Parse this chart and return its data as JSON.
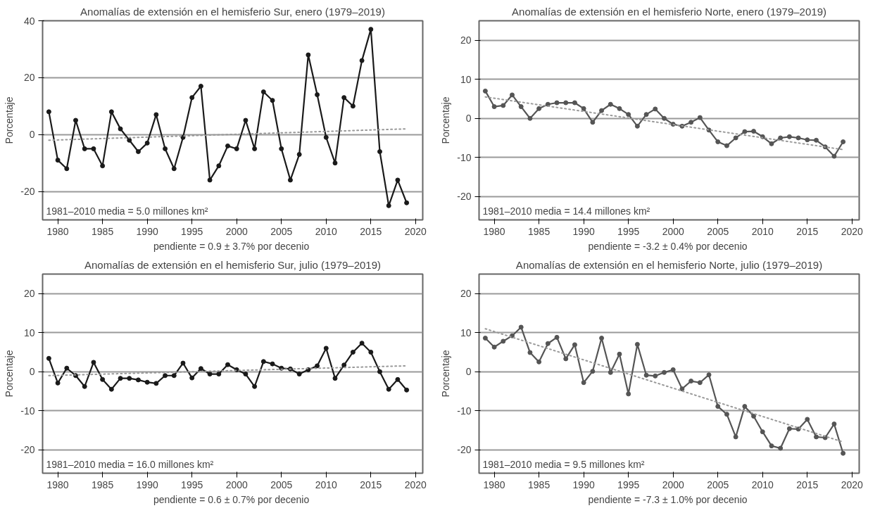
{
  "chart_data": [
    {
      "type": "line",
      "title": "Anomalías de extensión en el hemisferio Sur, enero (1979–2019)",
      "xlabel": "pendiente  = 0.9 ± 3.7% por decenio",
      "ylabel": "Porcentaje",
      "annotations": [
        "1981–2010 media = 5.0 millones km²"
      ],
      "xlim": [
        1978.3,
        2020.8
      ],
      "xticks": [
        1980,
        1985,
        1990,
        1995,
        2000,
        2005,
        2010,
        2015,
        2020
      ],
      "ylim": [
        -30,
        40
      ],
      "yticks": [
        -20,
        0,
        20,
        40
      ],
      "grid": "y",
      "marker": "circle",
      "line_style": "solid",
      "series": [
        {
          "color": "#1a1a1a",
          "x": [
            1979,
            1980,
            1981,
            1982,
            1983,
            1984,
            1985,
            1986,
            1987,
            1988,
            1989,
            1990,
            1991,
            1992,
            1993,
            1994,
            1995,
            1996,
            1997,
            1998,
            1999,
            2000,
            2001,
            2002,
            2003,
            2004,
            2005,
            2006,
            2007,
            2008,
            2009,
            2010,
            2011,
            2012,
            2013,
            2014,
            2015,
            2016,
            2017,
            2018,
            2019
          ],
          "values": [
            8,
            -9,
            -12,
            5,
            -5,
            -5,
            -11,
            8,
            2,
            -2,
            -6,
            -3,
            7,
            -5,
            -12,
            -1,
            13,
            17,
            -16,
            -11,
            -4,
            -5,
            5,
            -5,
            15,
            12,
            -5,
            -16,
            -7,
            28,
            14,
            -1,
            -10,
            13,
            10,
            26,
            37,
            -6,
            -25,
            -16,
            -24
          ]
        },
        {
          "color": "#999999",
          "marker": "none",
          "line_style": "dotted",
          "x": [
            1979,
            2019
          ],
          "values": [
            -2,
            2
          ]
        }
      ]
    },
    {
      "type": "line",
      "title": "Anomalías de extensión en el hemisferio Norte, enero (1979–2019)",
      "xlabel": "pendiente  = -3.2 ± 0.4% por decenio",
      "ylabel": "Porcentaje",
      "annotations": [
        "1981–2010 media = 14.4 millones km²"
      ],
      "xlim": [
        1978.3,
        2020.8
      ],
      "xticks": [
        1980,
        1985,
        1990,
        1995,
        2000,
        2005,
        2010,
        2015,
        2020
      ],
      "ylim": [
        -26,
        25
      ],
      "yticks": [
        -20,
        -10,
        0,
        10,
        20
      ],
      "grid": "y",
      "marker": "circle",
      "line_style": "solid",
      "series": [
        {
          "color": "#555555",
          "x": [
            1979,
            1980,
            1981,
            1982,
            1983,
            1984,
            1985,
            1986,
            1987,
            1988,
            1989,
            1990,
            1991,
            1992,
            1993,
            1994,
            1995,
            1996,
            1997,
            1998,
            1999,
            2000,
            2001,
            2002,
            2003,
            2004,
            2005,
            2006,
            2007,
            2008,
            2009,
            2010,
            2011,
            2012,
            2013,
            2014,
            2015,
            2016,
            2017,
            2018,
            2019
          ],
          "values": [
            7,
            3,
            3.3,
            6,
            3,
            0,
            2.5,
            3.6,
            4,
            4,
            4,
            2.5,
            -1,
            2,
            3.6,
            2.5,
            1,
            -2,
            1,
            2.4,
            0,
            -1.5,
            -2,
            -1,
            0.2,
            -3,
            -6,
            -7,
            -5,
            -3.4,
            -3.3,
            -4.7,
            -6.5,
            -5,
            -4.7,
            -5,
            -5.5,
            -5.6,
            -7.3,
            -9.7,
            -6
          ]
        },
        {
          "color": "#999999",
          "marker": "none",
          "line_style": "dotted",
          "x": [
            1979,
            2019
          ],
          "values": [
            5.5,
            -8
          ]
        }
      ]
    },
    {
      "type": "line",
      "title": "Anomalías de extensión en el hemisferio Sur, julio (1979–2019)",
      "xlabel": "pendiente  = 0.6 ± 0.7% por decenio",
      "ylabel": "Porcentaje",
      "annotations": [
        "1981–2010 media = 16.0 millones km²"
      ],
      "xlim": [
        1978.3,
        2020.8
      ],
      "xticks": [
        1980,
        1985,
        1990,
        1995,
        2000,
        2005,
        2010,
        2015,
        2020
      ],
      "ylim": [
        -26,
        25
      ],
      "yticks": [
        -20,
        -10,
        0,
        10,
        20
      ],
      "grid": "y",
      "marker": "circle",
      "line_style": "solid",
      "series": [
        {
          "color": "#1a1a1a",
          "x": [
            1979,
            1980,
            1981,
            1982,
            1983,
            1984,
            1985,
            1986,
            1987,
            1988,
            1989,
            1990,
            1991,
            1992,
            1993,
            1994,
            1995,
            1996,
            1997,
            1998,
            1999,
            2000,
            2001,
            2002,
            2003,
            2004,
            2005,
            2006,
            2007,
            2008,
            2009,
            2010,
            2011,
            2012,
            2013,
            2014,
            2015,
            2016,
            2017,
            2018,
            2019
          ],
          "values": [
            3.4,
            -2.9,
            0.9,
            -1,
            -3.8,
            2.4,
            -2,
            -4.5,
            -1.7,
            -1.7,
            -2.1,
            -2.7,
            -3,
            -1,
            -1,
            2.2,
            -1.6,
            0.8,
            -0.6,
            -0.6,
            1.8,
            0.5,
            -0.6,
            -3.8,
            2.6,
            2,
            0.9,
            0.7,
            -0.6,
            0.5,
            1.5,
            6,
            -1.7,
            1.7,
            5,
            7.3,
            5,
            0,
            -4.5,
            -2,
            -4.7
          ]
        },
        {
          "color": "#999999",
          "marker": "none",
          "line_style": "dotted",
          "x": [
            1979,
            2019
          ],
          "values": [
            -1,
            1.5
          ]
        }
      ]
    },
    {
      "type": "line",
      "title": "Anomalías de extensión en el hemisferio Norte, julio (1979–2019)",
      "xlabel": "pendiente  = -7.3 ± 1.0% por decenio",
      "ylabel": "Porcentaje",
      "annotations": [
        "1981–2010 media = 9.5 millones km²"
      ],
      "xlim": [
        1978.3,
        2020.8
      ],
      "xticks": [
        1980,
        1985,
        1990,
        1995,
        2000,
        2005,
        2010,
        2015,
        2020
      ],
      "ylim": [
        -26,
        25
      ],
      "yticks": [
        -20,
        -10,
        0,
        10,
        20
      ],
      "grid": "y",
      "marker": "circle",
      "line_style": "solid",
      "series": [
        {
          "color": "#555555",
          "x": [
            1979,
            1980,
            1981,
            1982,
            1983,
            1984,
            1985,
            1986,
            1987,
            1988,
            1989,
            1990,
            1991,
            1992,
            1993,
            1994,
            1995,
            1996,
            1997,
            1998,
            1999,
            2000,
            2001,
            2002,
            2003,
            2004,
            2005,
            2006,
            2007,
            2008,
            2009,
            2010,
            2011,
            2012,
            2013,
            2014,
            2015,
            2016,
            2017,
            2018,
            2019
          ],
          "values": [
            8.6,
            6.3,
            7.8,
            9.2,
            11.4,
            4.9,
            2.5,
            7.2,
            8.8,
            3.3,
            6.9,
            -2.8,
            0.1,
            8.6,
            -0.2,
            4.5,
            -5.7,
            7,
            -0.9,
            -1.1,
            -0.2,
            0.5,
            -4.4,
            -2.4,
            -2.8,
            -0.8,
            -8.9,
            -10.9,
            -16.7,
            -8.9,
            -11.4,
            -15.4,
            -19,
            -19.6,
            -14.6,
            -14.7,
            -12.2,
            -16.7,
            -16.9,
            -13.4,
            -20.9
          ]
        },
        {
          "color": "#999999",
          "marker": "none",
          "line_style": "dotted",
          "x": [
            1979,
            2019
          ],
          "values": [
            11,
            -18
          ]
        }
      ]
    }
  ]
}
